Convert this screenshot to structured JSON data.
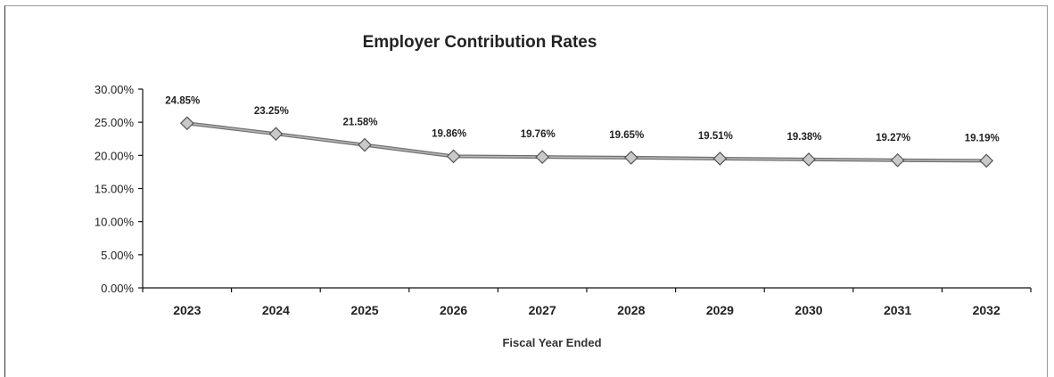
{
  "chart_data": {
    "type": "line",
    "title": "Employer Contribution Rates",
    "xlabel": "Fiscal Year Ended",
    "ylabel": "",
    "ylim": [
      0,
      30
    ],
    "y_ticks": [
      "0.00%",
      "5.00%",
      "10.00%",
      "15.00%",
      "20.00%",
      "25.00%",
      "30.00%"
    ],
    "y_tick_values": [
      0,
      5,
      10,
      15,
      20,
      25,
      30
    ],
    "categories": [
      "2023",
      "2024",
      "2025",
      "2026",
      "2027",
      "2028",
      "2029",
      "2030",
      "2031",
      "2032"
    ],
    "values": [
      24.85,
      23.25,
      21.58,
      19.86,
      19.76,
      19.65,
      19.51,
      19.38,
      19.27,
      19.19
    ],
    "data_labels": [
      "24.85%",
      "23.25%",
      "21.58%",
      "19.86%",
      "19.76%",
      "19.65%",
      "19.51%",
      "19.38%",
      "19.27%",
      "19.19%"
    ],
    "grid": false,
    "legend": "none",
    "marker": "diamond",
    "colors": {
      "line": "#6f6f6f",
      "marker_fill": "#c9c9c9",
      "marker_stroke": "#555555",
      "text": "#222222"
    }
  }
}
